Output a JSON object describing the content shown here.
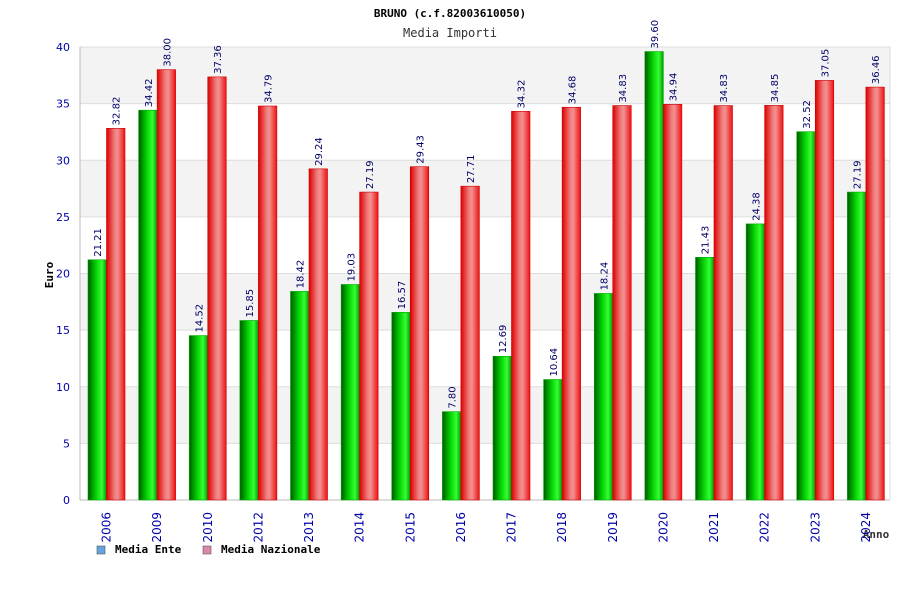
{
  "chart_data": {
    "type": "bar",
    "title": "BRUNO (c.f.82003610050)",
    "subtitle": "Media Importi",
    "ylabel": "Euro",
    "xlabel": "Anno",
    "ylim": [
      0,
      40
    ],
    "yticks": [
      0,
      5,
      10,
      15,
      20,
      25,
      30,
      35,
      40
    ],
    "grid": true,
    "legend_position": "bottom-left",
    "categories": [
      "2006",
      "2009",
      "2010",
      "2012",
      "2013",
      "2014",
      "2015",
      "2016",
      "2017",
      "2018",
      "2019",
      "2020",
      "2021",
      "2022",
      "2023",
      "2024"
    ],
    "series": [
      {
        "name": "Media Ente",
        "values": [
          21.21,
          34.42,
          14.52,
          15.85,
          18.42,
          19.03,
          16.57,
          7.8,
          12.69,
          10.64,
          18.24,
          39.6,
          21.43,
          24.38,
          32.52,
          27.19
        ],
        "labels": [
          "21.21",
          "34.42",
          "14.52",
          "15.85",
          "18.42",
          "19.03",
          "16.57",
          "7.80",
          "12.69",
          "10.64",
          "18.24",
          "39.60",
          "21.43",
          "24.38",
          "32.52",
          "27.19"
        ],
        "color": "#00cc00",
        "legend_color": "#66a3e0"
      },
      {
        "name": "Media Nazionale",
        "values": [
          32.82,
          38.0,
          37.36,
          34.79,
          29.24,
          27.19,
          29.43,
          27.71,
          34.32,
          34.68,
          34.83,
          34.94,
          34.83,
          34.85,
          37.05,
          36.46
        ],
        "labels": [
          "32.82",
          "38.00",
          "37.36",
          "34.79",
          "29.24",
          "27.19",
          "29.43",
          "27.71",
          "34.32",
          "34.68",
          "34.83",
          "34.94",
          "34.83",
          "34.85",
          "37.05",
          "36.46"
        ],
        "color": "#ee1111",
        "legend_color": "#dd88aa"
      }
    ]
  }
}
